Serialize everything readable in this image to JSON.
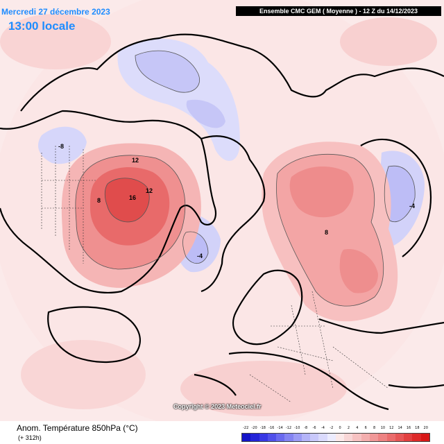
{
  "header": {
    "date": "Mercredi 27 décembre 2023",
    "local_time": "13:00 locale",
    "model": "Ensemble CMC GEM  ( Moyenne )  -  12 Z du 14/12/2023"
  },
  "footer": {
    "title": "Anom. Température 850hPa (°C)",
    "range": "(+ 312h)",
    "copyright": "Copyright © 2023 Meteociel.fr"
  },
  "map": {
    "contour_labels": [
      "16",
      "12",
      "12",
      "8",
      "-4",
      "-8",
      "8",
      "-4"
    ]
  },
  "colorbar": {
    "ticks": [
      "-22",
      "-20",
      "-18",
      "-16",
      "-14",
      "-12",
      "-10",
      "-8",
      "-6",
      "-4",
      "-2",
      "0",
      "2",
      "4",
      "6",
      "8",
      "10",
      "12",
      "14",
      "16",
      "18",
      "20"
    ],
    "colors": [
      "#1414c8",
      "#2424d8",
      "#3838e4",
      "#5050ea",
      "#6a6aef",
      "#8484f2",
      "#9c9cf5",
      "#b4b4f8",
      "#c8c8fa",
      "#dadafc",
      "#ececfe",
      "#fbe9e9",
      "#f8d6d6",
      "#f6c2c2",
      "#f3aeae",
      "#f09898",
      "#ed8282",
      "#ea6c6c",
      "#e65656",
      "#e24040",
      "#de2a2a",
      "#d81818"
    ]
  }
}
